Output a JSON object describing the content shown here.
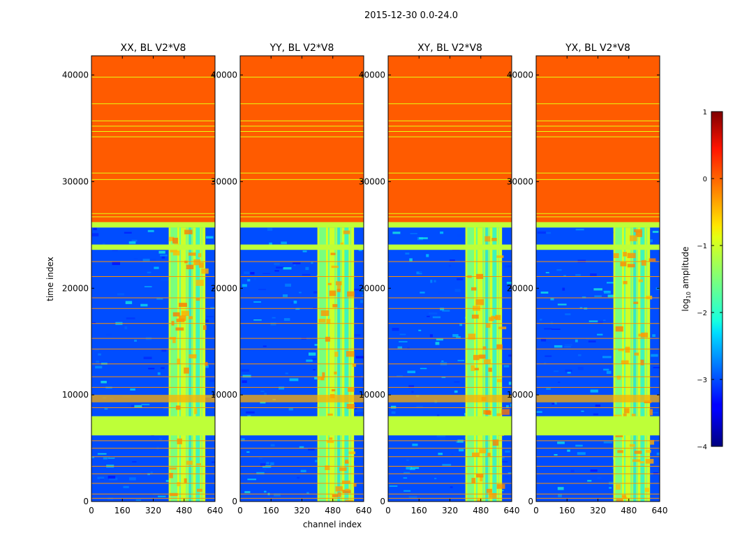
{
  "figure": {
    "suptitle": "2015-12-30 0.0-24.0",
    "xlabel": "channel index",
    "ylabel": "time index"
  },
  "chart_data": {
    "type": "heatmap",
    "title": "2015-12-30 0.0-24.0",
    "xlabel": "channel index",
    "ylabel": "time index",
    "xlim": [
      0,
      640
    ],
    "ylim": [
      0,
      41800
    ],
    "xticks": [
      0,
      160,
      320,
      480,
      640
    ],
    "yticks": [
      0,
      10000,
      20000,
      30000,
      40000
    ],
    "panels": [
      {
        "title": "XX, BL V2*V8"
      },
      {
        "title": "YY, BL V2*V8"
      },
      {
        "title": "XY, BL V2*V8"
      },
      {
        "title": "YX, BL V2*V8"
      }
    ],
    "colorbar": {
      "label": "log10 amplitude",
      "label_base": "log",
      "label_sub": "10",
      "label_rest": " amplitude",
      "range": [
        -4,
        1
      ],
      "ticks": [
        1,
        0,
        -1,
        -2,
        -3,
        -4
      ],
      "tick_labels": [
        "1",
        "0",
        "−1",
        "−2",
        "−3",
        "−4"
      ],
      "colormap": "jet"
    },
    "regions": [
      {
        "name": "flagged-top",
        "t_start": 26200,
        "t_end": 41800,
        "value": 0.05
      },
      {
        "name": "flagged-band-upper",
        "t_start": 25700,
        "t_end": 26200,
        "value": -1.1
      },
      {
        "name": "flagged-band-mid",
        "t_start": 23600,
        "t_end": 24100,
        "value": -1.1
      },
      {
        "name": "flagged-band-lower",
        "t_start": 6200,
        "t_end": 8000,
        "value": -1.1
      },
      {
        "name": "rfi-band",
        "t_start": 9300,
        "t_end": 10000,
        "value": -0.4
      },
      {
        "name": "background",
        "t_start": 0,
        "t_end": 25700,
        "value": -3.0
      },
      {
        "name": "bright-channels",
        "ch_start": 400,
        "ch_end": 590,
        "value": -1.0
      }
    ],
    "flag_lines": [
      39800,
      37300,
      35700,
      35200,
      34700,
      34200,
      30800,
      30200,
      27000,
      26700,
      22500,
      21100,
      19100,
      18100,
      16700,
      15300,
      14300,
      12900,
      11700,
      10700,
      8800,
      5700,
      5000,
      4200,
      3300,
      2600,
      1700,
      700,
      300
    ]
  }
}
